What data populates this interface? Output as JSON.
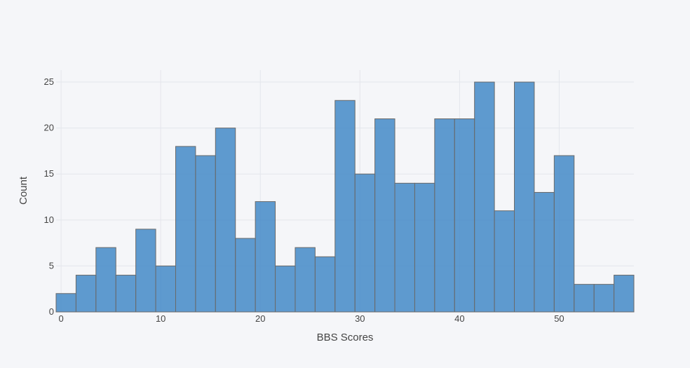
{
  "chart_data": {
    "type": "bar",
    "xlabel": "BBS Scores",
    "ylabel": "Count",
    "bin_width": 2,
    "bin_starts": [
      -0.5,
      1.5,
      3.5,
      5.5,
      7.5,
      9.5,
      11.5,
      13.5,
      15.5,
      17.5,
      19.5,
      21.5,
      23.5,
      25.5,
      27.5,
      29.5,
      31.5,
      33.5,
      35.5,
      37.5,
      39.5,
      41.5,
      43.5,
      45.5,
      47.5,
      49.5,
      51.5,
      53.5,
      55.5
    ],
    "values": [
      2,
      4,
      7,
      4,
      9,
      5,
      18,
      17,
      20,
      8,
      12,
      5,
      7,
      6,
      23,
      15,
      21,
      14,
      14,
      21,
      21,
      25,
      11,
      25,
      13,
      17,
      3,
      3,
      4
    ],
    "xlim": [
      -0.5,
      57.5
    ],
    "ylim": [
      0,
      26.3
    ],
    "x_ticks": [
      0,
      10,
      20,
      30,
      40,
      50
    ],
    "y_ticks": [
      0,
      5,
      10,
      15,
      20,
      25
    ],
    "grid": true,
    "colors": {
      "bar": "#3d85c6",
      "bar_edge": "#6a6a6a",
      "grid": "#e4e6ec",
      "background": "#f5f6f9"
    }
  }
}
